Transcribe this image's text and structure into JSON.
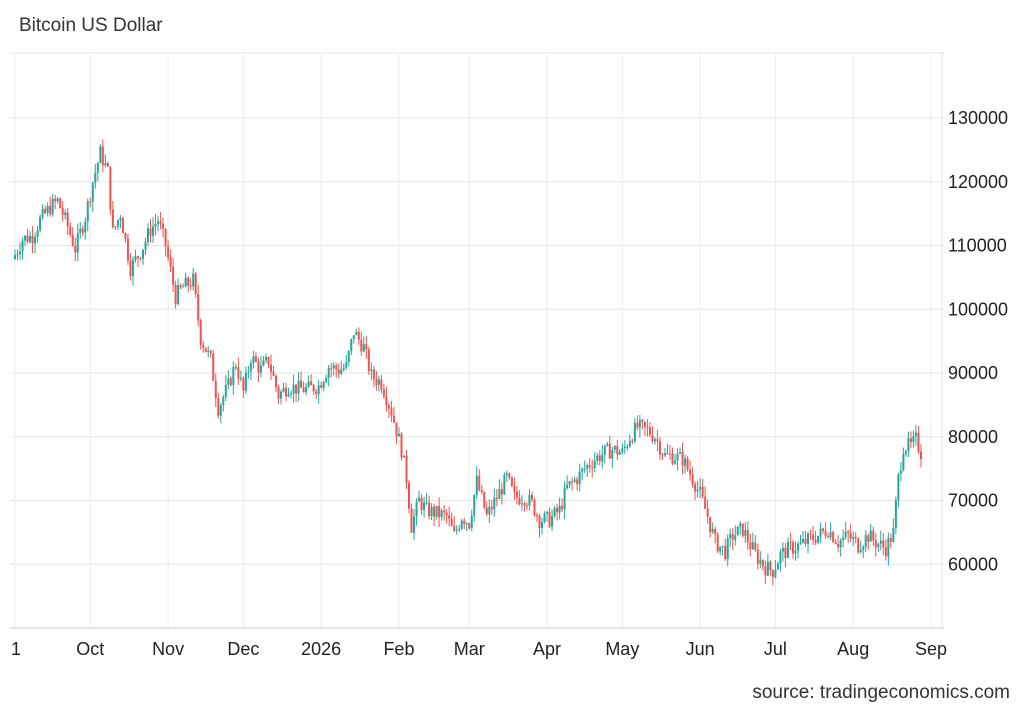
{
  "chart_data": {
    "type": "candlestick",
    "title": "Bitcoin US Dollar",
    "source": "source: tradingeconomics.com",
    "ylim": [
      50000,
      140000
    ],
    "yticks": [
      60000,
      70000,
      80000,
      90000,
      100000,
      110000,
      120000,
      130000
    ],
    "ytick_labels": [
      "60000",
      "70000",
      "80000",
      "90000",
      "100000",
      "110000",
      "120000",
      "130000"
    ],
    "xlim": [
      "2025-09-01",
      "2026-09-01"
    ],
    "xticks": [
      {
        "date": "2025-09-01",
        "label": "1"
      },
      {
        "date": "2025-10-01",
        "label": "Oct"
      },
      {
        "date": "2025-11-01",
        "label": "Nov"
      },
      {
        "date": "2025-12-01",
        "label": "Dec"
      },
      {
        "date": "2026-01-01",
        "label": "2026"
      },
      {
        "date": "2026-02-01",
        "label": "Feb"
      },
      {
        "date": "2026-03-01",
        "label": "Mar"
      },
      {
        "date": "2026-04-01",
        "label": "Apr"
      },
      {
        "date": "2026-05-01",
        "label": "May"
      },
      {
        "date": "2026-06-01",
        "label": "Jun"
      },
      {
        "date": "2026-07-01",
        "label": "Jul"
      },
      {
        "date": "2026-08-01",
        "label": "Aug"
      },
      {
        "date": "2026-09-01",
        "label": "Sep"
      }
    ],
    "grid": true,
    "up_color": "#26a69a",
    "down_color": "#ef5350",
    "close_series": [
      [
        "2025-09-01",
        108500
      ],
      [
        "2025-09-04",
        111000
      ],
      [
        "2025-09-08",
        111500
      ],
      [
        "2025-09-11",
        114000
      ],
      [
        "2025-09-15",
        116000
      ],
      [
        "2025-09-18",
        117000
      ],
      [
        "2025-09-22",
        113000
      ],
      [
        "2025-09-25",
        109500
      ],
      [
        "2025-09-29",
        114500
      ],
      [
        "2025-10-02",
        120000
      ],
      [
        "2025-10-05",
        124500
      ],
      [
        "2025-10-08",
        121500
      ],
      [
        "2025-10-10",
        112000
      ],
      [
        "2025-10-13",
        115000
      ],
      [
        "2025-10-17",
        106500
      ],
      [
        "2025-10-21",
        109000
      ],
      [
        "2025-10-25",
        112500
      ],
      [
        "2025-10-28",
        114000
      ],
      [
        "2025-10-31",
        110000
      ],
      [
        "2025-11-04",
        102000
      ],
      [
        "2025-11-07",
        103500
      ],
      [
        "2025-11-11",
        104500
      ],
      [
        "2025-11-14",
        95500
      ],
      [
        "2025-11-18",
        92000
      ],
      [
        "2025-11-21",
        84500
      ],
      [
        "2025-11-25",
        88000
      ],
      [
        "2025-11-28",
        91500
      ],
      [
        "2025-12-01",
        87000
      ],
      [
        "2025-12-04",
        92500
      ],
      [
        "2025-12-08",
        90500
      ],
      [
        "2025-12-11",
        92000
      ],
      [
        "2025-12-15",
        86500
      ],
      [
        "2025-12-19",
        88000
      ],
      [
        "2025-12-23",
        87500
      ],
      [
        "2025-12-27",
        87500
      ],
      [
        "2025-12-31",
        88000
      ],
      [
        "2026-01-04",
        91000
      ],
      [
        "2026-01-08",
        90500
      ],
      [
        "2026-01-11",
        91000
      ],
      [
        "2026-01-14",
        96500
      ],
      [
        "2026-01-18",
        94000
      ],
      [
        "2026-01-21",
        89500
      ],
      [
        "2026-01-25",
        88500
      ],
      [
        "2026-01-29",
        84000
      ],
      [
        "2026-02-02",
        78000
      ],
      [
        "2026-02-04",
        73500
      ],
      [
        "2026-02-06",
        66000
      ],
      [
        "2026-02-09",
        70000
      ],
      [
        "2026-02-12",
        68500
      ],
      [
        "2026-02-16",
        68000
      ],
      [
        "2026-02-20",
        67500
      ],
      [
        "2026-02-23",
        64500
      ],
      [
        "2026-02-26",
        67500
      ],
      [
        "2026-03-01",
        66500
      ],
      [
        "2026-03-04",
        73000
      ],
      [
        "2026-03-08",
        67500
      ],
      [
        "2026-03-12",
        70500
      ],
      [
        "2026-03-16",
        73500
      ],
      [
        "2026-03-19",
        70500
      ],
      [
        "2026-03-23",
        70500
      ],
      [
        "2026-03-26",
        69500
      ],
      [
        "2026-03-29",
        67000
      ],
      [
        "2026-04-02",
        67000
      ],
      [
        "2026-04-06",
        68500
      ],
      [
        "2026-04-09",
        72000
      ],
      [
        "2026-04-13",
        73500
      ],
      [
        "2026-04-16",
        75000
      ],
      [
        "2026-04-20",
        76500
      ],
      [
        "2026-04-24",
        77500
      ],
      [
        "2026-04-27",
        78000
      ],
      [
        "2026-05-01",
        77500
      ],
      [
        "2026-05-04",
        80000
      ],
      [
        "2026-05-07",
        81500
      ],
      [
        "2026-05-11",
        81000
      ],
      [
        "2026-05-14",
        80000
      ],
      [
        "2026-05-18",
        77000
      ],
      [
        "2026-05-21",
        77000
      ],
      [
        "2026-05-25",
        76500
      ],
      [
        "2026-05-29",
        73500
      ],
      [
        "2026-06-01",
        71000
      ],
      [
        "2026-06-04",
        67500
      ],
      [
        "2026-06-07",
        63500
      ],
      [
        "2026-06-11",
        62000
      ],
      [
        "2026-06-14",
        64500
      ],
      [
        "2026-06-18",
        65500
      ],
      [
        "2026-06-21",
        63000
      ],
      [
        "2026-06-24",
        61000
      ],
      [
        "2026-06-27",
        59500
      ],
      [
        "2026-06-30",
        59000
      ],
      [
        "2026-07-03",
        61500
      ],
      [
        "2026-07-07",
        62500
      ],
      [
        "2026-07-11",
        63000
      ],
      [
        "2026-07-15",
        64000
      ],
      [
        "2026-07-18",
        64500
      ],
      [
        "2026-07-22",
        65500
      ],
      [
        "2026-07-26",
        63500
      ],
      [
        "2026-07-30",
        64500
      ],
      [
        "2026-08-03",
        63000
      ],
      [
        "2026-08-07",
        64500
      ],
      [
        "2026-08-10",
        63500
      ],
      [
        "2026-08-14",
        62500
      ],
      [
        "2026-08-17",
        65000
      ],
      [
        "2026-08-19",
        73500
      ],
      [
        "2026-08-21",
        78500
      ],
      [
        "2026-08-24",
        78500
      ],
      [
        "2026-08-26",
        79500
      ],
      [
        "2026-08-28",
        77500
      ]
    ]
  }
}
